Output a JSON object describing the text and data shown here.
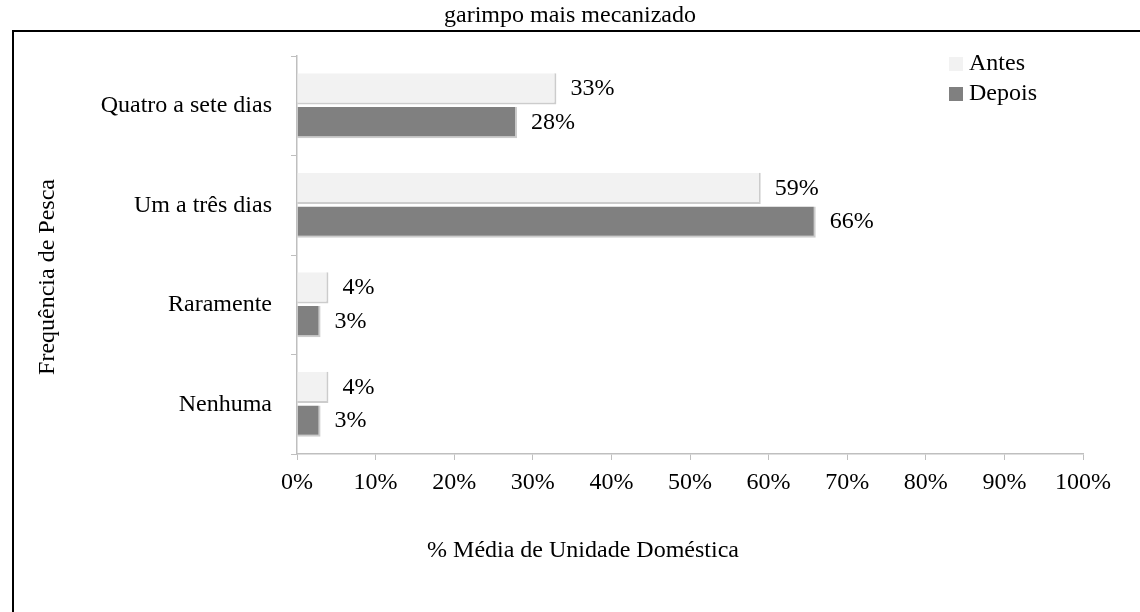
{
  "chart_data": {
    "type": "bar",
    "orientation": "horizontal",
    "title": "garimpo mais mecanizado",
    "xlabel": "% Média de Unidade Doméstica",
    "ylabel": "Frequência de Pesca",
    "categories": [
      "Quatro a sete dias",
      "Um a três dias",
      "Raramente",
      "Nenhuma"
    ],
    "series": [
      {
        "name": "Antes",
        "color": "#f2f2f2",
        "values": [
          33,
          59,
          4,
          4
        ],
        "value_labels": [
          "33%",
          "59%",
          "4%",
          "4%"
        ]
      },
      {
        "name": "Depois",
        "color": "#808080",
        "values": [
          28,
          66,
          3,
          3
        ],
        "value_labels": [
          "28%",
          "66%",
          "3%",
          "3%"
        ]
      }
    ],
    "xlim": [
      0,
      100
    ],
    "xticks": [
      {
        "value": 0,
        "label": "0%"
      },
      {
        "value": 10,
        "label": "10%"
      },
      {
        "value": 20,
        "label": "20%"
      },
      {
        "value": 30,
        "label": "30%"
      },
      {
        "value": 40,
        "label": "40%"
      },
      {
        "value": 50,
        "label": "50%"
      },
      {
        "value": 60,
        "label": "60%"
      },
      {
        "value": 70,
        "label": "70%"
      },
      {
        "value": 80,
        "label": "80%"
      },
      {
        "value": 90,
        "label": "90%"
      },
      {
        "value": 100,
        "label": "100%"
      }
    ],
    "legend": "top right"
  }
}
